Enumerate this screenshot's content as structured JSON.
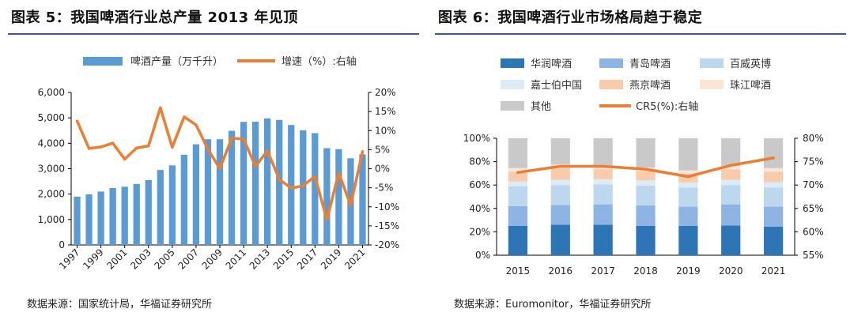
{
  "chart_data": [
    {
      "type": "bar",
      "title": "图表 5：我国啤酒行业总产量 2013 年见顶",
      "source": "数据来源：国家统计局，华福证券研究所",
      "x": [
        "1997",
        "1998",
        "1999",
        "2000",
        "2001",
        "2002",
        "2003",
        "2004",
        "2005",
        "2006",
        "2007",
        "2008",
        "2009",
        "2010",
        "2011",
        "2012",
        "2013",
        "2014",
        "2015",
        "2016",
        "2017",
        "2018",
        "2019",
        "2020",
        "2021"
      ],
      "x_tick_labels": [
        "1997",
        "1999",
        "2001",
        "2003",
        "2005",
        "2007",
        "2009",
        "2011",
        "2013",
        "2015",
        "2017",
        "2019",
        "2021"
      ],
      "series": [
        {
          "name": "啤酒产量（万千升）",
          "kind": "bar",
          "axis": "left",
          "color": "#5b9bd5",
          "values": [
            1900,
            1990,
            2100,
            2240,
            2290,
            2400,
            2550,
            2950,
            3130,
            3550,
            3960,
            4160,
            4160,
            4490,
            4840,
            4850,
            4980,
            4920,
            4720,
            4510,
            4400,
            3810,
            3770,
            3410,
            3560
          ]
        },
        {
          "name": "增速（%）:右轴",
          "kind": "line",
          "axis": "right",
          "color": "#ed7d31",
          "values": [
            12.5,
            5.3,
            5.7,
            6.7,
            2.5,
            5.4,
            6.0,
            16.0,
            5.6,
            13.6,
            11.5,
            5.1,
            0,
            8.0,
            7.8,
            0.6,
            4.7,
            -2.8,
            -5.1,
            -4.5,
            -2.0,
            -13.4,
            -1.1,
            -9.6,
            4.5
          ]
        }
      ],
      "ylim_left": [
        0,
        6000
      ],
      "y_ticks_left": [
        "0",
        "1,000",
        "2,000",
        "3,000",
        "4,000",
        "5,000",
        "6,000"
      ],
      "ylim_right": [
        -20,
        20
      ],
      "y_ticks_right": [
        "-20%",
        "-15%",
        "-10%",
        "-5%",
        "0%",
        "5%",
        "10%",
        "15%",
        "20%"
      ],
      "legend": [
        "啤酒产量（万千升）",
        "增速（%）:右轴"
      ]
    },
    {
      "type": "stacked-bar",
      "title": "图表 6：我国啤酒行业市场格局趋于稳定",
      "source": "数据来源：Euromonitor，华福证券研究所",
      "categories": [
        "2015",
        "2016",
        "2017",
        "2018",
        "2019",
        "2020",
        "2021"
      ],
      "series": [
        {
          "name": "华润啤酒",
          "color": "#2e75b6",
          "values": [
            25,
            26,
            26,
            25,
            25,
            25.5,
            24.5
          ]
        },
        {
          "name": "青岛啤酒",
          "color": "#8db4e2",
          "values": [
            17,
            17,
            17.5,
            17.5,
            16.5,
            18,
            17
          ]
        },
        {
          "name": "百威英博",
          "color": "#bdd7ee",
          "values": [
            17,
            17,
            17,
            17,
            16.5,
            16.5,
            16.5
          ]
        },
        {
          "name": "嘉士伯中国",
          "color": "#ddebf7",
          "values": [
            4,
            4.5,
            4.5,
            4.5,
            4,
            4.5,
            4.5
          ]
        },
        {
          "name": "燕京啤酒",
          "color": "#f8cbad",
          "values": [
            8.5,
            10,
            8.5,
            8,
            7.5,
            9,
            9
          ]
        },
        {
          "name": "珠江啤酒",
          "color": "#fce4d6",
          "values": [
            3,
            3,
            3,
            3,
            3,
            3,
            3
          ]
        },
        {
          "name": "其他",
          "color": "#c9c9c9",
          "values": [
            25.5,
            22.5,
            23.5,
            25,
            27.5,
            23.5,
            25.5
          ]
        },
        {
          "name": "CR5(%):右轴",
          "kind": "line",
          "axis": "right",
          "color": "#ed7d31",
          "values": [
            72.7,
            74,
            74,
            73.4,
            71.8,
            74.2,
            75.8
          ]
        }
      ],
      "ylim_left": [
        0,
        100
      ],
      "y_ticks_left": [
        "0%",
        "20%",
        "40%",
        "60%",
        "80%",
        "100%"
      ],
      "ylim_right": [
        55,
        80
      ],
      "y_ticks_right": [
        "55%",
        "60%",
        "65%",
        "70%",
        "75%",
        "80%"
      ],
      "legend": [
        "华润啤酒",
        "青岛啤酒",
        "百威英博",
        "嘉士伯中国",
        "燕京啤酒",
        "珠江啤酒",
        "其他",
        "CR5(%):右轴"
      ]
    }
  ]
}
